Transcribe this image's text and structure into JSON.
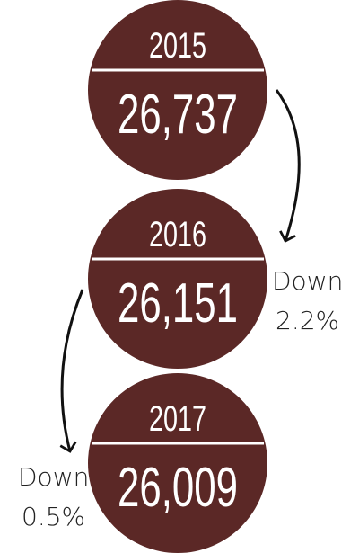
{
  "items": [
    {
      "year": "2015",
      "value": "26,737"
    },
    {
      "year": "2016",
      "value": "26,151"
    },
    {
      "year": "2017",
      "value": "26,009"
    }
  ],
  "changes": [
    {
      "word": "Down",
      "amount": "2.2%"
    },
    {
      "word": "Down",
      "amount": "0.5%"
    }
  ]
}
